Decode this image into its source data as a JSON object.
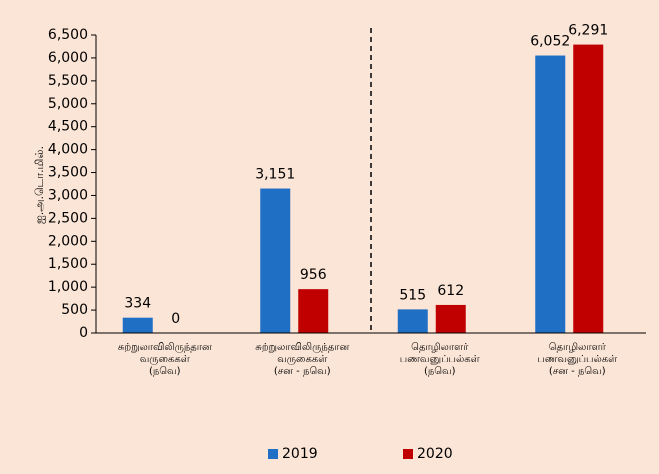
{
  "chart_data": {
    "type": "bar",
    "y_label": "ஐ.அ.டொ.மில்.",
    "categories": [
      "சுற்றுலாவிலிருந்தான\nவருகைகள்\n(நவெ)",
      "சுற்றுலாவிலிருந்தான\nவருகைகள்\n(சன - நவெ)",
      "தொழிலாளர்\nபணவனுப்பல்கள்\n(நவெ)",
      "தொழிலாளர்\nபணவனுப்பல்கள்\n(சன - நவெ)"
    ],
    "series": [
      {
        "name": "2019",
        "color": "#1f6fc5",
        "values": [
          334,
          3151,
          515,
          6052
        ],
        "value_labels": [
          "334",
          "3,151",
          "515",
          "6,052"
        ]
      },
      {
        "name": "2020",
        "color": "#c00000",
        "values": [
          0,
          956,
          612,
          6291
        ],
        "value_labels": [
          "0",
          "956",
          "612",
          "6,291"
        ]
      }
    ],
    "ylim": [
      0,
      6500
    ],
    "yticks": [
      0,
      500,
      {
        "value": 1000,
        "label": "1,000"
      },
      {
        "value": 1500,
        "label": "1,500"
      },
      {
        "value": 2000,
        "label": "2,000"
      },
      {
        "value": 2500,
        "label": "2,500"
      },
      {
        "value": 3000,
        "label": "3,000"
      },
      {
        "value": 3500,
        "label": "3,500"
      },
      {
        "value": 4000,
        "label": "4,000"
      },
      {
        "value": 4500,
        "label": "4,500"
      },
      {
        "value": 5000,
        "label": "5,000"
      },
      {
        "value": 5500,
        "label": "5,500"
      },
      {
        "value": 6000,
        "label": "6,000"
      },
      {
        "value": 6500,
        "label": "6,500"
      }
    ],
    "legend": "bottom"
  }
}
